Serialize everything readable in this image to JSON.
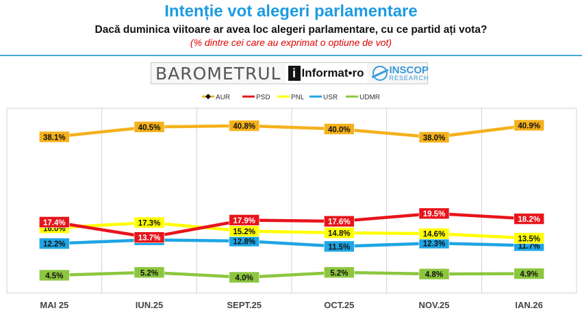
{
  "header": {
    "title": "Intenție vot alegeri parlamentare",
    "subtitle": "Dacă duminica viitoare ar avea loc alegeri parlamentare, cu ce partid ați vota?",
    "note": "(% dintre cei care au exprimat o optiune de vot)"
  },
  "logos": {
    "barometrul": "BAROMETRUL",
    "informat_i": "i",
    "informat": "Informat•ro",
    "inscop": "INSCOP",
    "inscop_sub": "RESEARCH"
  },
  "colors": {
    "AUR": "#f5b11b",
    "PSD": "#e8141b",
    "PNL": "#ffff00",
    "USR": "#1ea5e3",
    "UDMR": "#8cc63f",
    "grid": "#d0d0d0",
    "rule": "#4aa8d8"
  },
  "chart_data": {
    "type": "line",
    "categories": [
      "MAI 25",
      "IUN.25",
      "SEPT.25",
      "OCT.25",
      "NOV.25",
      "IAN.26"
    ],
    "series": [
      {
        "name": "AUR",
        "values": [
          38.1,
          40.5,
          40.8,
          40.0,
          38.0,
          40.9
        ],
        "labels": [
          "38.1%",
          "40.5%",
          "40.8%",
          "40.0%",
          "38.0%",
          "40.9%"
        ]
      },
      {
        "name": "PSD",
        "values": [
          17.4,
          13.7,
          17.9,
          17.6,
          19.5,
          18.2
        ],
        "labels": [
          "17.4%",
          "13.7%",
          "17.9%",
          "17.6%",
          "19.5%",
          "18.2%"
        ]
      },
      {
        "name": "PNL",
        "values": [
          16.0,
          17.3,
          15.2,
          14.8,
          14.6,
          13.5
        ],
        "labels": [
          "16.0%",
          "17.3%",
          "15.2%",
          "14.8%",
          "14.6%",
          "13.5%"
        ]
      },
      {
        "name": "USR",
        "values": [
          12.2,
          13.1,
          12.8,
          11.5,
          12.3,
          11.7
        ],
        "labels": [
          "12.2%",
          "13.1%",
          "12.8%",
          "11.5%",
          "12.3%",
          "11.7%"
        ]
      },
      {
        "name": "UDMR",
        "values": [
          4.5,
          5.2,
          4.0,
          5.2,
          4.8,
          4.9
        ],
        "labels": [
          "4.5%",
          "5.2%",
          "4.0%",
          "5.2%",
          "4.8%",
          "4.9%"
        ]
      }
    ],
    "legend": "top-center",
    "grid": "vertical"
  }
}
